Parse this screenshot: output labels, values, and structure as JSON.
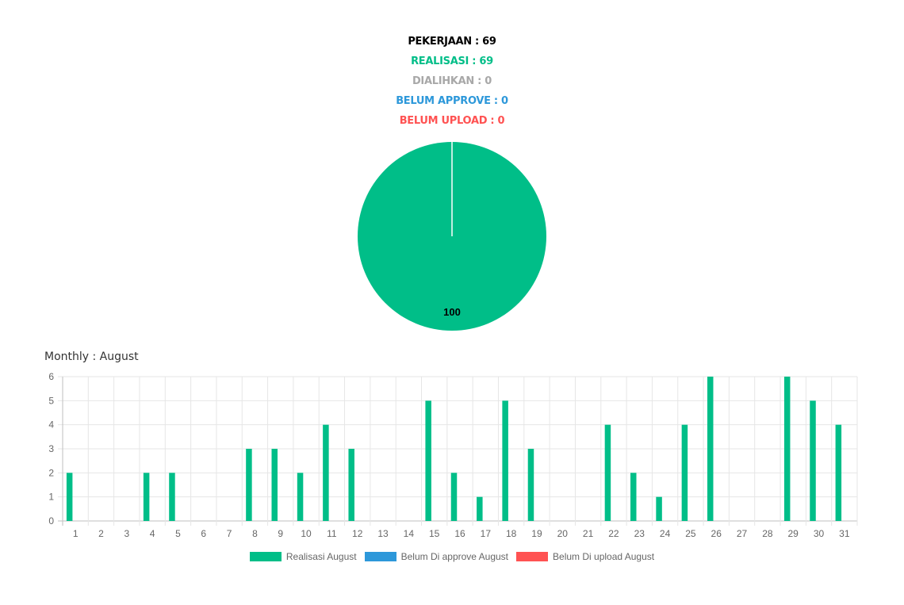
{
  "summary": {
    "pekerjaan": "PEKERJAAN : 69",
    "realisasi": "REALISASI : 69",
    "dialihkan": "DIALIHKAN : 0",
    "belum_approve": "BELUM APPROVE : 0",
    "belum_upload": "BELUM UPLOAD : 0"
  },
  "colors": {
    "pekerjaan": "#000000",
    "realisasi": "#00be88",
    "dialihkan": "#a8a8a8",
    "belum_approve": "#2d98da",
    "belum_upload": "#ff5252",
    "grid": "#e6e6e6",
    "axis": "#bfbfbf"
  },
  "monthly": {
    "title": "Monthly : August"
  },
  "chart_data": [
    {
      "type": "pie",
      "slices": [
        {
          "value": 100,
          "color": "#00be88"
        }
      ],
      "data_labels": [
        "100"
      ]
    },
    {
      "type": "bar",
      "categories": [
        "1",
        "2",
        "3",
        "4",
        "5",
        "6",
        "7",
        "8",
        "9",
        "10",
        "11",
        "12",
        "13",
        "14",
        "15",
        "16",
        "17",
        "18",
        "19",
        "20",
        "21",
        "22",
        "23",
        "24",
        "25",
        "26",
        "27",
        "28",
        "29",
        "30",
        "31"
      ],
      "series": [
        {
          "name": "Realisasi August",
          "color": "#00be88",
          "values": [
            2,
            0,
            0,
            2,
            2,
            0,
            0,
            3,
            3,
            2,
            4,
            3,
            0,
            0,
            5,
            2,
            1,
            5,
            3,
            0,
            0,
            4,
            2,
            1,
            4,
            6,
            0,
            0,
            6,
            5,
            4
          ]
        },
        {
          "name": "Belum Di approve August",
          "color": "#2d98da",
          "values": [
            0,
            0,
            0,
            0,
            0,
            0,
            0,
            0,
            0,
            0,
            0,
            0,
            0,
            0,
            0,
            0,
            0,
            0,
            0,
            0,
            0,
            0,
            0,
            0,
            0,
            0,
            0,
            0,
            0,
            0,
            0
          ]
        },
        {
          "name": "Belum Di upload August",
          "color": "#ff5252",
          "values": [
            0,
            0,
            0,
            0,
            0,
            0,
            0,
            0,
            0,
            0,
            0,
            0,
            0,
            0,
            0,
            0,
            0,
            0,
            0,
            0,
            0,
            0,
            0,
            0,
            0,
            0,
            0,
            0,
            0,
            0,
            0
          ]
        }
      ],
      "yticks": [
        "0",
        "1",
        "2",
        "3",
        "4",
        "5",
        "6"
      ],
      "ylim": [
        0,
        6
      ],
      "grid": true,
      "legend_position": "bottom"
    }
  ]
}
